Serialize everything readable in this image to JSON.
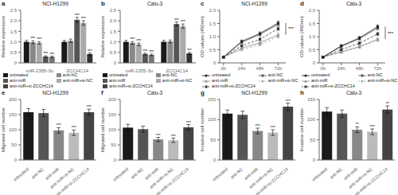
{
  "chart_data": [
    {
      "type": "bar",
      "panel_label": "a",
      "title": "NCI-H1299",
      "ylabel": "Relative expression",
      "categories": [
        "miR-2355-3p",
        "ZCCHC14"
      ],
      "series": [
        {
          "name": "untreated",
          "color": "#1a1a1a",
          "colors": [
            "#1a1a1a",
            "#1a1a1a"
          ],
          "values": [
            1.0,
            1.0
          ],
          "errors": [
            0.07,
            0.07
          ],
          "sig": [
            null,
            null
          ]
        },
        {
          "name": "anti-NC",
          "color": "#888888",
          "colors": [
            "#888888",
            "#888888"
          ],
          "values": [
            0.98,
            1.05
          ],
          "errors": [
            0.07,
            0.08
          ],
          "sig": [
            "***",
            null
          ]
        },
        {
          "name": "anti-miR",
          "color": "#555555",
          "colors": [
            "#aaaaaa",
            "#555555"
          ],
          "values": [
            0.95,
            2.05
          ],
          "errors": [
            0.06,
            0.12
          ],
          "sig": [
            "***",
            "***"
          ]
        },
        {
          "name": "anti-miR+si-NC",
          "color": "#aaaaaa",
          "colors": [
            "#555555",
            "#aaaaaa"
          ],
          "values": [
            0.3,
            1.9
          ],
          "errors": [
            0.04,
            0.11
          ],
          "sig": [
            "***",
            "***"
          ]
        },
        {
          "name": "anti-miR+si-ZCCHC14",
          "color": "#444444",
          "colors": [
            "#777777",
            "#333333"
          ],
          "values": [
            0.28,
            0.42
          ],
          "errors": [
            0.04,
            0.05
          ],
          "sig": [
            "***",
            "***"
          ]
        }
      ],
      "ylim": [
        0,
        2.5
      ],
      "yticks": [
        0,
        0.5,
        {
          "value": 1.0,
          "label": "1.0"
        },
        1.5,
        {
          "value": 2.0,
          "label": "2.0"
        },
        2.5
      ]
    },
    {
      "type": "bar",
      "panel_label": "b",
      "title": "Calu-3",
      "ylabel": "Relative expression",
      "categories": [
        "miR-2355-3p",
        "ZCCHC14"
      ],
      "series": [
        {
          "name": "untreated",
          "color": "#1a1a1a",
          "colors": [
            "#1a1a1a",
            "#1a1a1a"
          ],
          "values": [
            1.0,
            1.0
          ],
          "errors": [
            0.07,
            0.07
          ],
          "sig": [
            null,
            null
          ]
        },
        {
          "name": "anti-NC",
          "color": "#888888",
          "colors": [
            "#888888",
            "#888888"
          ],
          "values": [
            0.95,
            1.02
          ],
          "errors": [
            0.06,
            0.07
          ],
          "sig": [
            "***",
            null
          ]
        },
        {
          "name": "anti-miR",
          "color": "#555555",
          "colors": [
            "#aaaaaa",
            "#555555"
          ],
          "values": [
            0.88,
            1.85
          ],
          "errors": [
            0.06,
            0.1
          ],
          "sig": [
            "***",
            "***"
          ]
        },
        {
          "name": "anti-miR+si-NC",
          "color": "#aaaaaa",
          "colors": [
            "#555555",
            "#aaaaaa"
          ],
          "values": [
            0.42,
            1.75
          ],
          "errors": [
            0.04,
            0.1
          ],
          "sig": [
            "***",
            "***"
          ]
        },
        {
          "name": "anti-miR+si-ZCCHC14",
          "color": "#444444",
          "colors": [
            "#777777",
            "#333333"
          ],
          "values": [
            0.38,
            0.45
          ],
          "errors": [
            0.04,
            0.05
          ],
          "sig": [
            "***",
            "***"
          ]
        }
      ],
      "ylim": [
        0,
        2.5
      ],
      "yticks": [
        0,
        0.5,
        {
          "value": 1.0,
          "label": "1.0"
        },
        1.5,
        {
          "value": 2.0,
          "label": "2.0"
        },
        2.5
      ]
    },
    {
      "type": "line",
      "panel_label": "c",
      "title": "NCI-H1299",
      "ylabel": "OD values (450nm)",
      "x": [
        0,
        24,
        48,
        72
      ],
      "xlim": [
        -5,
        82
      ],
      "xticks": [
        {
          "value": 0,
          "label": "0h"
        },
        {
          "value": 24,
          "label": "24h"
        },
        {
          "value": 48,
          "label": "48h"
        },
        {
          "value": 72,
          "label": "72h"
        }
      ],
      "series": [
        {
          "name": "untreated",
          "color": "#1a1a1a",
          "line_style": "solid",
          "marker": "circle",
          "values": [
            0.22,
            0.82,
            1.12,
            1.52
          ],
          "errors": [
            0.04,
            0.05,
            0.06,
            0.07
          ]
        },
        {
          "name": "anti-NC",
          "color": "#555555",
          "line_style": "solid",
          "marker": "square",
          "values": [
            0.22,
            0.78,
            1.08,
            1.47
          ],
          "errors": [
            0.04,
            0.05,
            0.06,
            0.07
          ]
        },
        {
          "name": "anti-miR",
          "color": "#888888",
          "line_style": "solid",
          "marker": "triangle",
          "values": [
            0.22,
            0.56,
            0.77,
            1.07
          ],
          "errors": [
            0.03,
            0.04,
            0.05,
            0.06
          ]
        },
        {
          "name": "anti-miR+si-NC",
          "color": "#aaaaaa",
          "line_style": "dashed",
          "marker": "circle",
          "values": [
            0.22,
            0.5,
            0.7,
            1.0
          ],
          "errors": [
            0.03,
            0.04,
            0.05,
            0.06
          ]
        },
        {
          "name": "anti-miR+si-ZCCHC14",
          "color": "#333333",
          "line_style": "dashed",
          "marker": "square",
          "values": [
            0.22,
            0.65,
            0.9,
            1.3
          ],
          "errors": [
            0.03,
            0.04,
            0.05,
            0.06
          ]
        }
      ],
      "ylim": [
        0,
        2.0
      ],
      "yticks": [
        0,
        0.5,
        {
          "value": 1.0,
          "label": "1.0"
        },
        1.5,
        {
          "value": 2.0,
          "label": "2.0"
        }
      ],
      "bracket": {
        "y": [
          1.07,
          1.52
        ],
        "text": "***"
      }
    },
    {
      "type": "line",
      "panel_label": "d",
      "title": "Calu-3",
      "ylabel": "OD values (450nm)",
      "x": [
        0,
        24,
        48,
        72
      ],
      "xlim": [
        -5,
        82
      ],
      "xticks": [
        {
          "value": 0,
          "label": "0h"
        },
        {
          "value": 24,
          "label": "24h"
        },
        {
          "value": 48,
          "label": "48h"
        },
        {
          "value": 72,
          "label": "72h"
        }
      ],
      "series": [
        {
          "name": "untreated",
          "color": "#1a1a1a",
          "line_style": "solid",
          "marker": "circle",
          "values": [
            0.22,
            0.65,
            0.95,
            1.38
          ],
          "errors": [
            0.04,
            0.05,
            0.06,
            0.07
          ]
        },
        {
          "name": "anti-NC",
          "color": "#555555",
          "line_style": "solid",
          "marker": "square",
          "values": [
            0.22,
            0.62,
            0.92,
            1.32
          ],
          "errors": [
            0.04,
            0.05,
            0.06,
            0.07
          ]
        },
        {
          "name": "anti-miR",
          "color": "#888888",
          "line_style": "solid",
          "marker": "triangle",
          "values": [
            0.22,
            0.42,
            0.62,
            0.9
          ],
          "errors": [
            0.03,
            0.04,
            0.05,
            0.05
          ]
        },
        {
          "name": "anti-miR+si-NC",
          "color": "#aaaaaa",
          "line_style": "dashed",
          "marker": "circle",
          "values": [
            0.22,
            0.4,
            0.6,
            0.87
          ],
          "errors": [
            0.03,
            0.04,
            0.05,
            0.05
          ]
        },
        {
          "name": "anti-miR+si-ZCCHC14",
          "color": "#333333",
          "line_style": "dashed",
          "marker": "square",
          "values": [
            0.22,
            0.5,
            0.75,
            1.1
          ],
          "errors": [
            0.03,
            0.04,
            0.05,
            0.06
          ]
        }
      ],
      "ylim": [
        0,
        2.0
      ],
      "yticks": [
        0,
        0.5,
        {
          "value": 1.0,
          "label": "1.0"
        },
        1.5,
        {
          "value": 2.0,
          "label": "2.0"
        }
      ],
      "bracket": {
        "y": [
          0.9,
          1.38
        ],
        "text": "***"
      }
    },
    {
      "type": "bar",
      "panel_label": "e",
      "title": "NCI-H1299",
      "ylabel": "Migrated cell number",
      "categories": [
        "untreated",
        "anti-NC",
        "anti-miR",
        "anti-miR+si-NC",
        "anti-miR+si-ZCCHC14"
      ],
      "values": [
        158,
        155,
        98,
        90,
        158
      ],
      "errors": [
        12,
        12,
        9,
        9,
        10
      ],
      "colors": [
        "#1a1a1a",
        "#555555",
        "#888888",
        "#bbbbbb",
        "#444444"
      ],
      "sig": [
        null,
        null,
        "***",
        "***",
        "***"
      ],
      "ylim": [
        0,
        200
      ],
      "yticks": [
        0,
        50,
        100,
        150,
        200
      ]
    },
    {
      "type": "bar",
      "panel_label": "f",
      "title": "Calu-3",
      "ylabel": "Migrated cell number",
      "categories": [
        "untreated",
        "anti-NC",
        "anti-miR",
        "anti-miR+si-NC",
        "anti-miR+si-ZCCHC14"
      ],
      "values": [
        107,
        102,
        68,
        65,
        108
      ],
      "errors": [
        11,
        10,
        7,
        7,
        9
      ],
      "colors": [
        "#1a1a1a",
        "#555555",
        "#888888",
        "#bbbbbb",
        "#444444"
      ],
      "sig": [
        null,
        null,
        "***",
        "***",
        "***"
      ],
      "ylim": [
        0,
        200
      ],
      "yticks": [
        0,
        50,
        100,
        150,
        200
      ]
    },
    {
      "type": "bar",
      "panel_label": "g",
      "title": "NCI-H1299",
      "ylabel": "Invasive cell number",
      "categories": [
        "untreated",
        "anti-NC",
        "anti-miR",
        "anti-miR+si-NC",
        "anti-miR+si-ZCCHC14"
      ],
      "values": [
        115,
        112,
        72,
        68,
        132
      ],
      "errors": [
        9,
        9,
        7,
        7,
        9
      ],
      "colors": [
        "#1a1a1a",
        "#555555",
        "#888888",
        "#bbbbbb",
        "#444444"
      ],
      "sig": [
        null,
        null,
        "***",
        "***",
        "***"
      ],
      "ylim": [
        0,
        150
      ],
      "yticks": [
        0,
        50,
        100,
        150
      ]
    },
    {
      "type": "bar",
      "panel_label": "h",
      "title": "Calu-3",
      "ylabel": "Invasive cell number",
      "categories": [
        "untreated",
        "anti-NC",
        "anti-miR",
        "anti-miR+si-NC",
        "anti-miR+si-ZCCHC14"
      ],
      "values": [
        120,
        115,
        75,
        70,
        125
      ],
      "errors": [
        10,
        9,
        7,
        7,
        9
      ],
      "colors": [
        "#1a1a1a",
        "#555555",
        "#888888",
        "#bbbbbb",
        "#444444"
      ],
      "sig": [
        null,
        null,
        "**",
        "***",
        "**"
      ],
      "ylim": [
        0,
        150
      ],
      "yticks": [
        0,
        50,
        100,
        150
      ]
    }
  ]
}
